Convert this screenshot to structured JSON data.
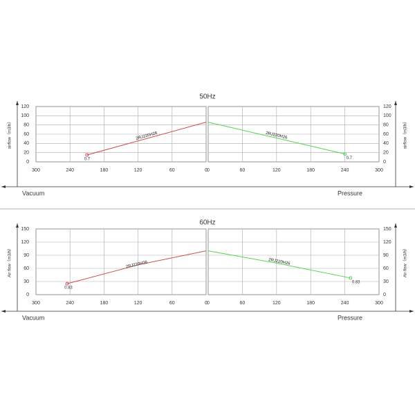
{
  "chart_data": [
    {
      "type": "line",
      "title": "50Hz",
      "y_label": "airflow（m3/h）",
      "ylim": [
        0,
        120
      ],
      "yticks": [
        0,
        20,
        40,
        60,
        80,
        100,
        120
      ],
      "vacuum": {
        "label": "Vacuum",
        "xlim": [
          300,
          0
        ],
        "xticks": [
          300,
          240,
          180,
          120,
          60,
          0
        ],
        "series": {
          "name": "2RJ220H26",
          "color": "#d04a4a",
          "x": [
            210,
            0
          ],
          "y": [
            15,
            86
          ],
          "point_label": "0.7"
        }
      },
      "pressure": {
        "label": "Pressure",
        "xlim": [
          0,
          300
        ],
        "xticks": [
          0,
          60,
          120,
          180,
          240,
          300
        ],
        "series": {
          "name": "2RJ220H26",
          "color": "#55d455",
          "x": [
            0,
            240
          ],
          "y": [
            86,
            17
          ],
          "point_label": "0.7"
        }
      }
    },
    {
      "type": "line",
      "title": "60Hz",
      "y_label": "Air flow（m3/h）",
      "ylim": [
        0,
        150
      ],
      "yticks": [
        0,
        30,
        60,
        90,
        120,
        150
      ],
      "vacuum": {
        "label": "Vacuum",
        "xlim": [
          300,
          0
        ],
        "xticks": [
          300,
          240,
          180,
          120,
          60,
          0
        ],
        "series": {
          "name": "2RJ220H36",
          "color": "#d04a4a",
          "x": [
            245,
            120,
            0
          ],
          "y": [
            25,
            68,
            100
          ],
          "point_label": "0.83"
        }
      },
      "pressure": {
        "label": "Pressure",
        "xlim": [
          0,
          300
        ],
        "xticks": [
          0,
          60,
          120,
          180,
          240,
          300
        ],
        "series": {
          "name": "2RJ220H26",
          "color": "#55d455",
          "x": [
            0,
            120,
            250
          ],
          "y": [
            100,
            72,
            38
          ],
          "point_label": "0.83"
        }
      }
    }
  ]
}
